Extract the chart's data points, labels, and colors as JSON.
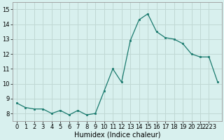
{
  "x": [
    0,
    1,
    2,
    3,
    4,
    5,
    6,
    7,
    8,
    9,
    10,
    11,
    12,
    13,
    14,
    15,
    16,
    17,
    18,
    19,
    20,
    21,
    22,
    23
  ],
  "y": [
    8.7,
    8.4,
    8.3,
    8.3,
    8.0,
    8.2,
    7.9,
    8.2,
    7.9,
    8.0,
    9.5,
    11.0,
    10.1,
    12.9,
    14.3,
    14.7,
    13.5,
    13.1,
    13.0,
    12.7,
    12.0,
    11.8,
    11.8,
    10.1
  ],
  "line_color": "#1a7a6e",
  "marker": "s",
  "marker_size": 2,
  "bg_color": "#d8f0ee",
  "grid_color": "#c0d8d4",
  "xlabel": "Humidex (Indice chaleur)",
  "xlim": [
    -0.5,
    23.5
  ],
  "ylim": [
    7.5,
    15.5
  ],
  "yticks": [
    8,
    9,
    10,
    11,
    12,
    13,
    14,
    15
  ],
  "xtick_positions": [
    0,
    1,
    2,
    3,
    4,
    5,
    6,
    7,
    8,
    9,
    10,
    11,
    12,
    13,
    14,
    15,
    16,
    17,
    18,
    19,
    20,
    21,
    22
  ],
  "xtick_labels": [
    "0",
    "1",
    "2",
    "3",
    "4",
    "5",
    "6",
    "7",
    "8",
    "9",
    "10",
    "11",
    "12",
    "13",
    "14",
    "15",
    "16",
    "17",
    "18",
    "19",
    "20",
    "21",
    "2223"
  ],
  "tick_fontsize": 6,
  "xlabel_fontsize": 7
}
